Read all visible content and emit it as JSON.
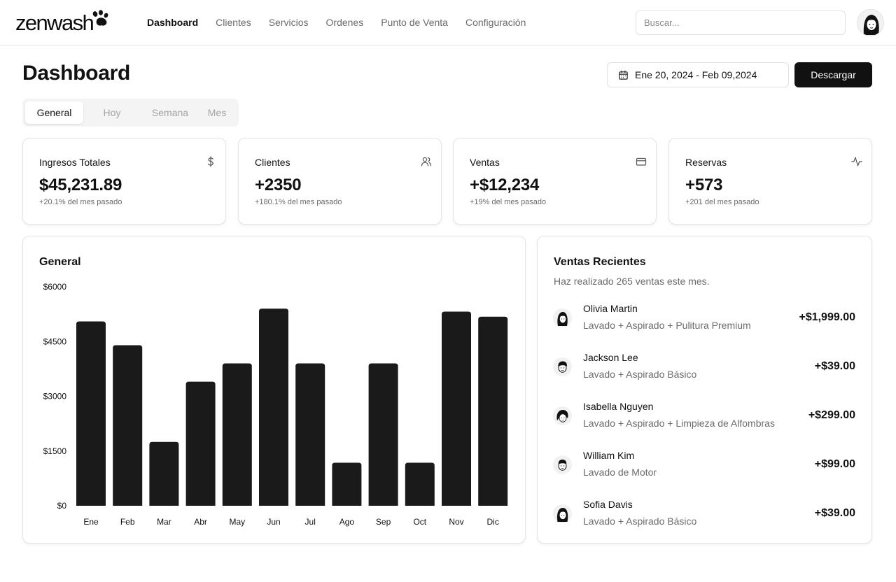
{
  "brand": {
    "logo_text": "zenwash"
  },
  "nav": {
    "items": [
      {
        "label": "Dashboard",
        "active": true
      },
      {
        "label": "Clientes",
        "active": false
      },
      {
        "label": "Servicios",
        "active": false
      },
      {
        "label": "Ordenes",
        "active": false
      },
      {
        "label": "Punto de Venta",
        "active": false
      },
      {
        "label": "Configuración",
        "active": false
      }
    ]
  },
  "search": {
    "placeholder": "Buscar...",
    "value": ""
  },
  "page": {
    "title": "Dashboard",
    "date_range": "Ene 20, 2024 - Feb 09,2024",
    "download_label": "Descargar"
  },
  "tabs": [
    {
      "label": "General",
      "active": true
    },
    {
      "label": "Hoy",
      "active": false
    },
    {
      "label": "Semana",
      "active": false
    },
    {
      "label": "Mes",
      "active": false
    }
  ],
  "stats": [
    {
      "label": "Ingresos Totales",
      "value": "$45,231.89",
      "note": "+20.1% del mes pasado",
      "icon": "dollar-icon"
    },
    {
      "label": "Clientes",
      "value": "+2350",
      "note": "+180.1% del mes pasado",
      "icon": "users-icon"
    },
    {
      "label": "Ventas",
      "value": "+$12,234",
      "note": "+19% del mes pasado",
      "icon": "credit-card-icon"
    },
    {
      "label": "Reservas",
      "value": "+573",
      "note": "+201 del mes pasado",
      "icon": "activity-icon"
    }
  ],
  "overview": {
    "title": "General"
  },
  "chart_data": {
    "type": "bar",
    "title": "General",
    "categories": [
      "Ene",
      "Feb",
      "Mar",
      "Abr",
      "May",
      "Jun",
      "Jul",
      "Ago",
      "Sep",
      "Oct",
      "Nov",
      "Dic"
    ],
    "values": [
      5050,
      4400,
      1750,
      3400,
      3900,
      5400,
      3900,
      1180,
      3900,
      1180,
      5320,
      5180
    ],
    "yticks": [
      "$0",
      "$1500",
      "$3000",
      "$4500",
      "$6000"
    ],
    "ylim": [
      0,
      6000
    ],
    "grid": false,
    "color": "#1a1a1b"
  },
  "recent_sales": {
    "title": "Ventas Recientes",
    "subtitle": "Haz realizado 265 ventas este mes.",
    "items": [
      {
        "name": "Olivia Martin",
        "description": "Lavado + Aspirado + Pulitura Premium",
        "amount": "+$1,999.00",
        "avatar": "avatar-long-hair"
      },
      {
        "name": "Jackson Lee",
        "description": "Lavado + Aspirado Básico",
        "amount": "+$39.00",
        "avatar": "avatar-short-hair"
      },
      {
        "name": "Isabella Nguyen",
        "description": "Lavado + Aspirado + Limpieza de Alfombras",
        "amount": "+$299.00",
        "avatar": "avatar-wavy-hair"
      },
      {
        "name": "William Kim",
        "description": "Lavado de Motor",
        "amount": "+$99.00",
        "avatar": "avatar-short-hair"
      },
      {
        "name": "Sofia Davis",
        "description": "Lavado + Aspirado Básico",
        "amount": "+$39.00",
        "avatar": "avatar-long-hair"
      }
    ]
  }
}
